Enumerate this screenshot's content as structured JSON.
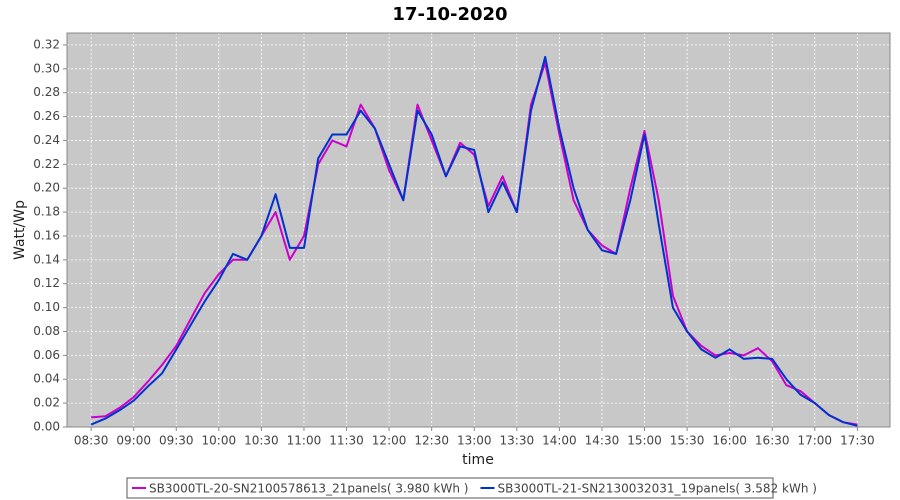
{
  "chart_data": {
    "type": "line",
    "title": "17-10-2020",
    "x_label": "time",
    "y_label": "Watt/Wp",
    "x": [
      "08:30",
      "08:40",
      "08:50",
      "09:00",
      "09:10",
      "09:20",
      "09:30",
      "09:40",
      "09:50",
      "10:00",
      "10:10",
      "10:20",
      "10:30",
      "10:40",
      "10:50",
      "11:00",
      "11:10",
      "11:20",
      "11:30",
      "11:40",
      "11:50",
      "12:00",
      "12:10",
      "12:20",
      "12:30",
      "12:40",
      "12:50",
      "13:00",
      "13:10",
      "13:20",
      "13:30",
      "13:40",
      "13:50",
      "14:00",
      "14:10",
      "14:20",
      "14:30",
      "14:40",
      "14:50",
      "15:00",
      "15:10",
      "15:20",
      "15:30",
      "15:40",
      "15:50",
      "16:00",
      "16:10",
      "16:20",
      "16:30",
      "16:40",
      "16:50",
      "17:00",
      "17:10",
      "17:20",
      "17:30"
    ],
    "series": [
      {
        "name": "SB3000TL-20-SN2100578613_21panels( 3.980 kWh )",
        "color": "#cc00cc",
        "values": [
          0.008,
          0.009,
          0.016,
          0.025,
          0.038,
          0.052,
          0.068,
          0.09,
          0.112,
          0.128,
          0.14,
          0.14,
          0.16,
          0.18,
          0.14,
          0.16,
          0.22,
          0.24,
          0.235,
          0.27,
          0.25,
          0.215,
          0.19,
          0.27,
          0.24,
          0.21,
          0.238,
          0.228,
          0.185,
          0.21,
          0.18,
          0.27,
          0.305,
          0.245,
          0.19,
          0.165,
          0.152,
          0.145,
          0.2,
          0.248,
          0.19,
          0.11,
          0.08,
          0.068,
          0.06,
          0.062,
          0.06,
          0.066,
          0.055,
          0.035,
          0.03,
          0.02,
          0.01,
          0.004,
          0.002
        ]
      },
      {
        "name": "SB3000TL-21-SN2130032031_19panels( 3.582 kWh )",
        "color": "#0033cc",
        "values": [
          0.002,
          0.007,
          0.014,
          0.022,
          0.034,
          0.045,
          0.065,
          0.085,
          0.105,
          0.123,
          0.145,
          0.14,
          0.16,
          0.195,
          0.15,
          0.15,
          0.225,
          0.245,
          0.245,
          0.265,
          0.25,
          0.22,
          0.19,
          0.265,
          0.245,
          0.21,
          0.235,
          0.232,
          0.18,
          0.205,
          0.18,
          0.265,
          0.31,
          0.25,
          0.2,
          0.165,
          0.148,
          0.145,
          0.19,
          0.245,
          0.17,
          0.1,
          0.08,
          0.065,
          0.058,
          0.065,
          0.057,
          0.058,
          0.057,
          0.04,
          0.027,
          0.02,
          0.01,
          0.004,
          0.001
        ]
      }
    ],
    "xlim": [
      "08:13",
      "17:53"
    ],
    "xticks": [
      "08:30",
      "09:00",
      "09:30",
      "10:00",
      "10:30",
      "11:00",
      "11:30",
      "12:00",
      "12:30",
      "13:00",
      "13:30",
      "14:00",
      "14:30",
      "15:00",
      "15:30",
      "16:00",
      "16:30",
      "17:00",
      "17:30"
    ],
    "ylim": [
      0,
      0.33
    ],
    "yticks": [
      {
        "value": 0,
        "label": "0.00"
      },
      0.02,
      0.04,
      0.06,
      0.08,
      {
        "value": 0.1,
        "label": "0.10"
      },
      0.12,
      0.14,
      0.16,
      0.18,
      {
        "value": 0.2,
        "label": "0.20"
      },
      0.22,
      0.24,
      0.26,
      0.28,
      {
        "value": 0.3,
        "label": "0.30"
      },
      0.32
    ],
    "grid": true,
    "legend": "bottom"
  }
}
